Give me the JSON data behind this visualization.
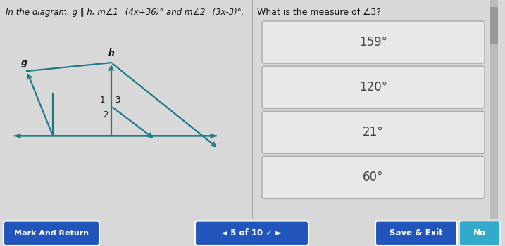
{
  "bg_color": "#d8d8d8",
  "title_text": "In the diagram, g ∥ h, m∠1=(4x+36)° and m∠2=(3x-3)°.",
  "question_text": "What is the measure of ∠3?",
  "choices": [
    "159°",
    "120°",
    "21°",
    "60°"
  ],
  "choice_box_color": "#e8e8e8",
  "choice_border_color": "#aaaaaa",
  "choice_text_color": "#444444",
  "bottom_bar_color": "#2255bb",
  "bottom_text_color": "#ffffff",
  "bottom_labels": [
    "Mark And Return",
    "4 5 of 10 ✓ ►",
    "Save & Exit",
    "No"
  ],
  "diagram_line_color": "#1a7a8a",
  "label_color": "#111111",
  "title_fontsize": 8.5,
  "question_fontsize": 9,
  "choice_fontsize": 12,
  "scrollbar_color": "#999999"
}
